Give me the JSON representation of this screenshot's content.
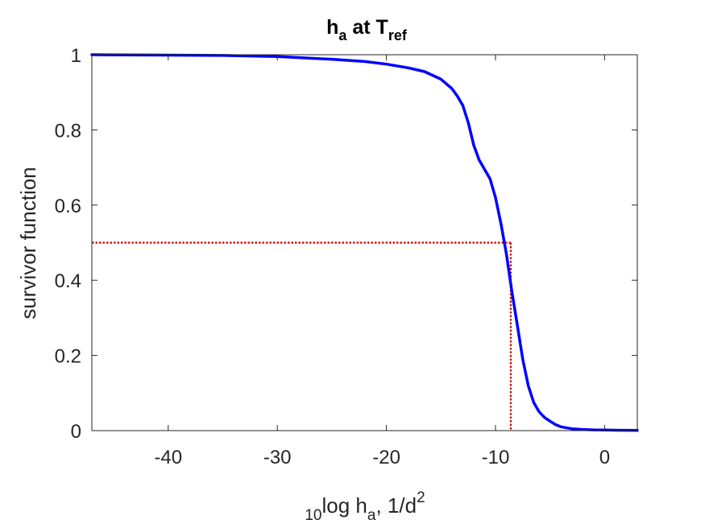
{
  "chart_data": {
    "type": "line",
    "title": {
      "main": "h",
      "main_sub": "a",
      "mid": " at T",
      "end_sub": "ref"
    },
    "ylabel": "survivor function",
    "xlabel": {
      "pre_sub": "10",
      "main": "log h",
      "main_sub": "a",
      "tail": ", 1/d",
      "sup": "2"
    },
    "xlim": [
      -47,
      3
    ],
    "ylim": [
      0,
      1
    ],
    "xticks": [
      -40,
      -30,
      -20,
      -10,
      0
    ],
    "yticks": [
      0,
      0.2,
      0.4,
      0.6,
      0.8,
      1
    ],
    "xtick_labels": [
      "-40",
      "-30",
      "-20",
      "-10",
      "0"
    ],
    "ytick_labels": [
      "0",
      "0.2",
      "0.4",
      "0.6",
      "0.8",
      "1"
    ],
    "grid": false,
    "series": [
      {
        "color": "#0000ff",
        "x": [
          -47,
          -40,
          -35,
          -30,
          -25,
          -22,
          -20,
          -18,
          -16.5,
          -15,
          -14,
          -13.5,
          -13,
          -12.5,
          -12,
          -11.5,
          -11,
          -10.5,
          -10,
          -9.5,
          -9,
          -8.5,
          -8,
          -7.5,
          -7,
          -6.5,
          -6,
          -5.5,
          -5,
          -4.5,
          -4,
          -3,
          -2,
          -1,
          0,
          1,
          2,
          3
        ],
        "y": [
          1.0,
          0.999,
          0.998,
          0.995,
          0.988,
          0.982,
          0.975,
          0.965,
          0.955,
          0.935,
          0.91,
          0.89,
          0.865,
          0.82,
          0.76,
          0.72,
          0.695,
          0.67,
          0.62,
          0.55,
          0.47,
          0.37,
          0.28,
          0.19,
          0.12,
          0.075,
          0.05,
          0.035,
          0.025,
          0.016,
          0.01,
          0.005,
          0.003,
          0.002,
          0.0015,
          0.001,
          0.0008,
          0.0007
        ]
      }
    ],
    "reference": {
      "color": "#cc0000",
      "median_x": -8.6,
      "survival_level": 0.5
    }
  }
}
